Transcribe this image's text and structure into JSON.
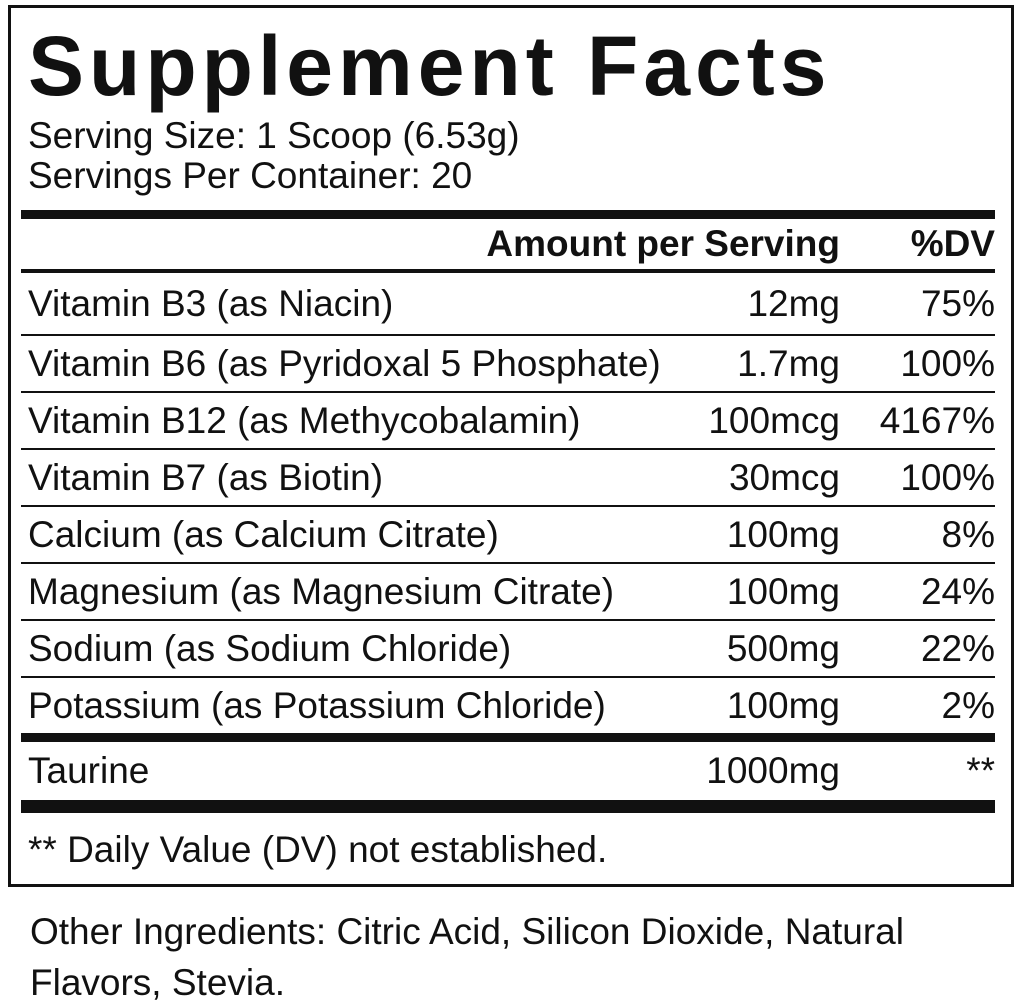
{
  "title": "Supplement Facts",
  "serving_info": {
    "serving_size": "Serving Size: 1 Scoop (6.53g)",
    "servings_per_container": "Servings Per Container: 20"
  },
  "table": {
    "headers": {
      "amount": "Amount per Serving",
      "dv": "%DV"
    },
    "rows": [
      {
        "name": "Vitamin B3 (as Niacin)",
        "amount": "12mg",
        "dv": "75%"
      },
      {
        "name": "Vitamin B6 (as Pyridoxal 5 Phosphate)",
        "amount": "1.7mg",
        "dv": "100%"
      },
      {
        "name": "Vitamin B12 (as Methycobalamin)",
        "amount": "100mcg",
        "dv": "4167%"
      },
      {
        "name": "Vitamin B7 (as Biotin)",
        "amount": "30mcg",
        "dv": "100%"
      },
      {
        "name": "Calcium (as Calcium Citrate)",
        "amount": "100mg",
        "dv": "8%"
      },
      {
        "name": "Magnesium (as Magnesium Citrate)",
        "amount": "100mg",
        "dv": "24%"
      },
      {
        "name": "Sodium (as Sodium Chloride)",
        "amount": "500mg",
        "dv": "22%"
      },
      {
        "name": "Potassium (as Potassium Chloride)",
        "amount": "100mg",
        "dv": "2%"
      }
    ],
    "highlight_row": {
      "name": "Taurine",
      "amount": "1000mg",
      "dv": "**"
    }
  },
  "footnote": "** Daily Value (DV) not established.",
  "other_ingredients": "Other Ingredients: Citric Acid, Silicon Dioxide, Natural Flavors, Stevia.",
  "colors": {
    "text": "#111111",
    "background": "#ffffff",
    "rule": "#111111"
  }
}
